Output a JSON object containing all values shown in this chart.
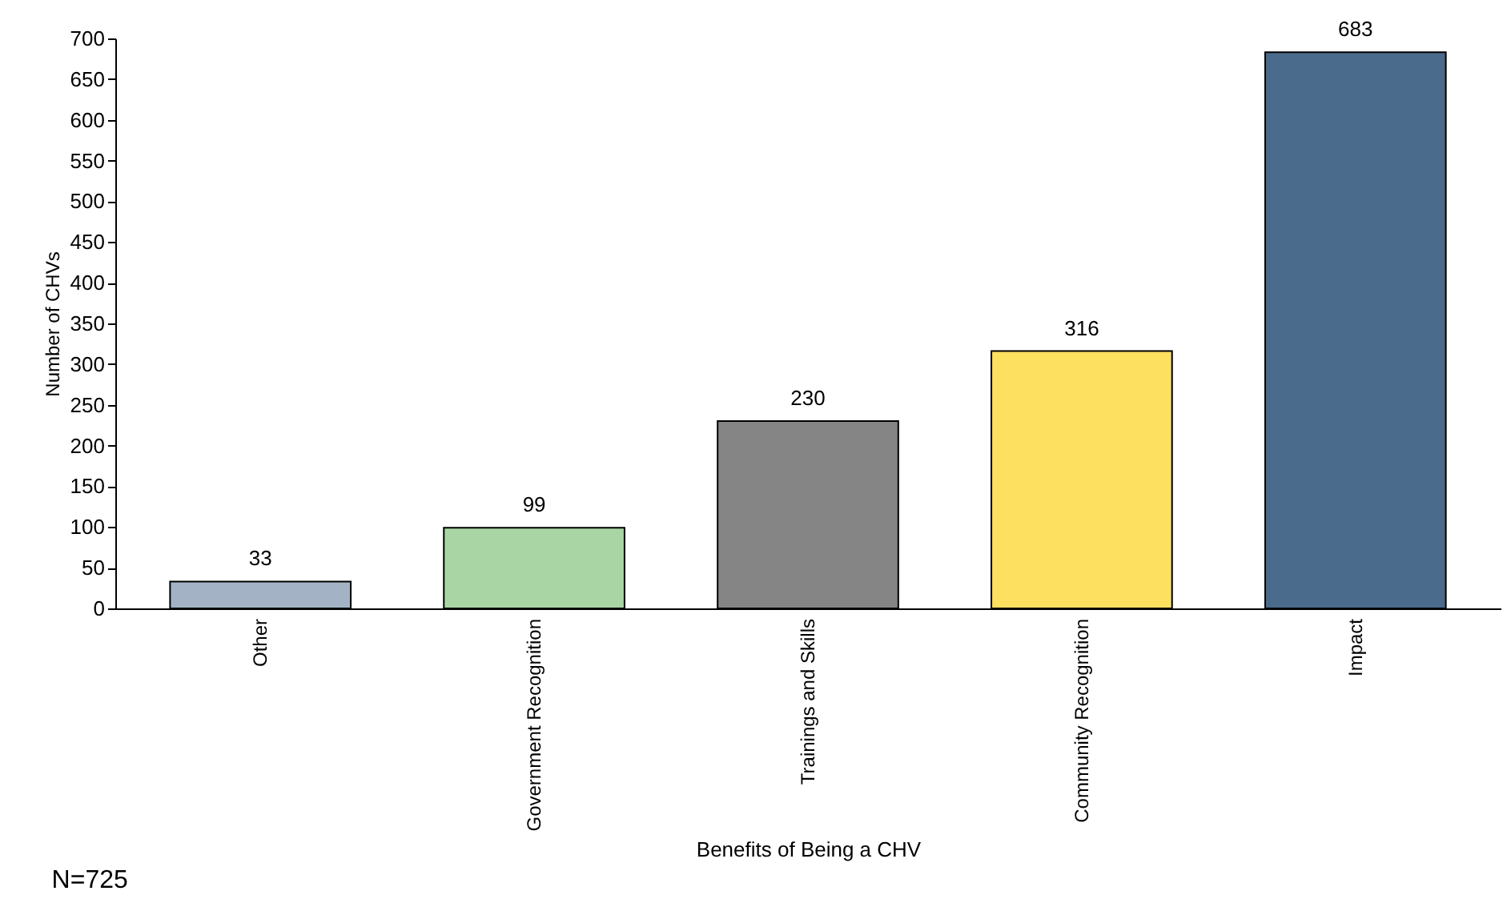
{
  "chart_data": {
    "type": "bar",
    "xlabel": "Benefits of Being a CHV",
    "ylabel": "Number of CHVs",
    "categories": [
      "Other",
      "Government Recognition",
      "Trainings and Skills",
      "Community Recognition",
      "Impact"
    ],
    "values": [
      33,
      99,
      230,
      316,
      683
    ],
    "colors": [
      "#a3b3c5",
      "#a9d5a5",
      "#858585",
      "#fde05f",
      "#4a6b8b"
    ],
    "ylim": [
      0,
      700
    ],
    "yticks": [
      0,
      50,
      100,
      150,
      200,
      250,
      300,
      350,
      400,
      450,
      500,
      550,
      600,
      650,
      700
    ],
    "data_labels": true,
    "grid": false,
    "annotations": [
      "N=725"
    ]
  }
}
